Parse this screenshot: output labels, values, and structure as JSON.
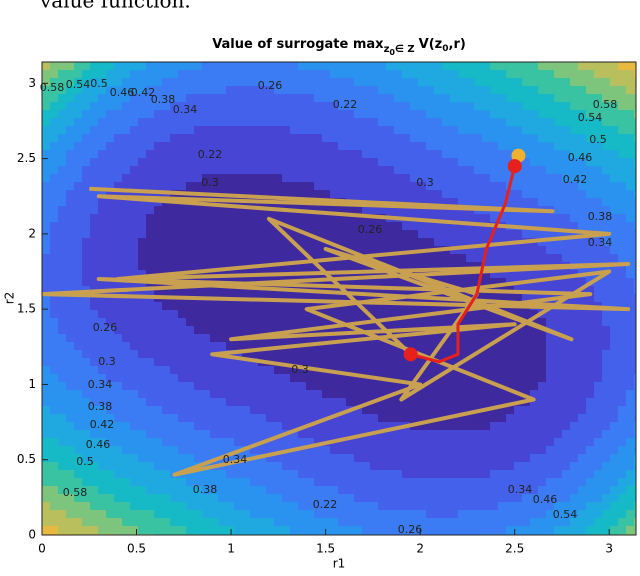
{
  "caption_fragment": "value function.",
  "chart_data": {
    "type": "contour",
    "title_parts": [
      "Value of surrogate max",
      "z",
      "0",
      "∈ Z",
      "V(z",
      "0",
      ",r)"
    ],
    "x_label": "r1",
    "y_label": "r2",
    "xlim": [
      0,
      3.1416
    ],
    "ylim": [
      0,
      3.1416
    ],
    "xticks": [
      0,
      0.5,
      1,
      1.5,
      2,
      2.5,
      3
    ],
    "yticks": [
      0,
      0.5,
      1,
      1.5,
      2,
      2.5,
      3
    ],
    "levels": [
      0.22,
      0.26,
      0.3,
      0.34,
      0.38,
      0.42,
      0.46,
      0.5,
      0.54,
      0.58
    ],
    "colormap": [
      "#3e2a9e",
      "#4645d4",
      "#4361eb",
      "#3b7bf4",
      "#2a93f0",
      "#1fa9e0",
      "#16bac6",
      "#3ac3a3",
      "#7dc57c",
      "#b9bf5c",
      "#e8b83f",
      "#f9d02a"
    ],
    "grid": false,
    "series": [
      {
        "color": "#c8a050",
        "x": [
          0.25,
          2.7,
          0.3,
          3.0,
          0.4,
          3.1,
          0.0,
          3.1,
          0.3,
          2.9,
          1.0,
          2.5,
          0.9,
          2.0,
          0.7,
          2.6,
          1.4,
          3.0,
          1.9,
          2.3,
          1.5,
          2.8,
          1.2,
          1.95
        ],
        "y": [
          2.3,
          2.15,
          2.25,
          2.0,
          1.7,
          1.8,
          1.6,
          1.5,
          1.7,
          1.6,
          1.3,
          1.4,
          1.2,
          1.0,
          0.4,
          0.9,
          1.5,
          1.75,
          0.9,
          1.6,
          1.9,
          1.3,
          2.1,
          1.2
        ]
      },
      {
        "color": "#e8201c",
        "x": [
          2.5,
          2.45,
          2.35,
          2.3,
          2.2,
          2.2,
          2.1,
          1.95
        ],
        "y": [
          2.45,
          2.2,
          1.9,
          1.6,
          1.4,
          1.2,
          1.15,
          1.2
        ]
      }
    ],
    "markers": [
      {
        "color": "#f0b030",
        "x": 2.52,
        "y": 2.52
      },
      {
        "color": "#e8201c",
        "x": 2.5,
        "y": 2.45
      },
      {
        "color": "#e8201c",
        "x": 1.95,
        "y": 1.2
      }
    ]
  }
}
